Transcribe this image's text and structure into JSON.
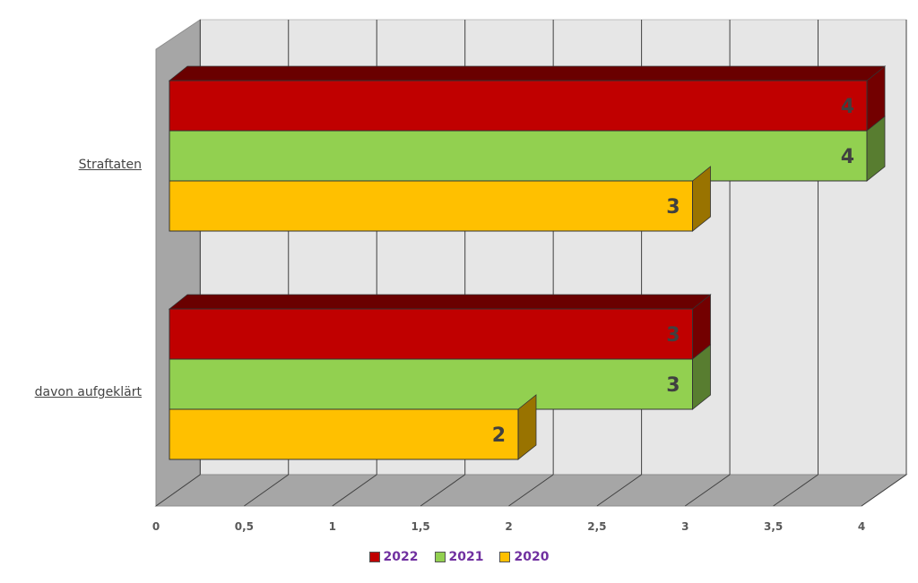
{
  "chart_data": {
    "type": "bar",
    "orientation": "horizontal",
    "categories": [
      "Straftaten",
      "davon aufgeklärt"
    ],
    "series": [
      {
        "name": "2022",
        "values": [
          4,
          3
        ],
        "color": "#c00000"
      },
      {
        "name": "2021",
        "values": [
          4,
          3
        ],
        "color": "#92d050"
      },
      {
        "name": "2020",
        "values": [
          3,
          2
        ],
        "color": "#ffc000"
      }
    ],
    "xlim": [
      0,
      4
    ],
    "x_ticks": [
      "0",
      "0,5",
      "1",
      "1,5",
      "2",
      "2,5",
      "3",
      "3,5",
      "4"
    ],
    "grid": true,
    "legend_position": "bottom",
    "style": "3d"
  }
}
